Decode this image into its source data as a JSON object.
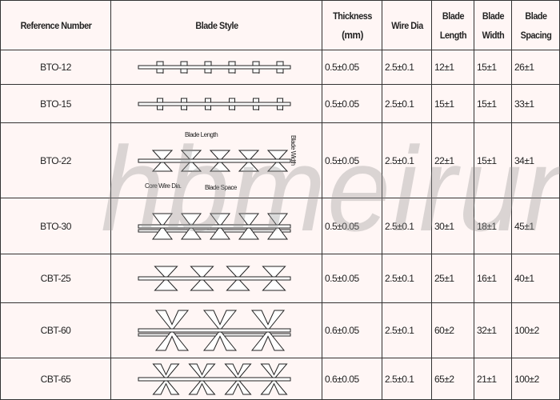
{
  "headers": {
    "ref": "Reference Number",
    "style": "Blade Style",
    "thickness": "Thickness",
    "thickness_unit": "(mm)",
    "wire": "Wire Dia",
    "length1": "Blade",
    "length2": "Length",
    "width1": "Blade",
    "width2": "Width",
    "spacing1": "Blade",
    "spacing2": "Spacing"
  },
  "rows": [
    {
      "ref": "BTO-12",
      "thickness": "0.5±0.05",
      "wire": "2.5±0.1",
      "length": "12±1",
      "width": "15±1",
      "spacing": "26±1"
    },
    {
      "ref": "BTO-15",
      "thickness": "0.5±0.05",
      "wire": "2.5±0.1",
      "length": "15±1",
      "width": "15±1",
      "spacing": "33±1"
    },
    {
      "ref": "BTO-22",
      "thickness": "0.5±0.05",
      "wire": "2.5±0.1",
      "length": "22±1",
      "width": "15±1",
      "spacing": "34±1"
    },
    {
      "ref": "BTO-30",
      "thickness": "0.5±0.05",
      "wire": "2.5±0.1",
      "length": "30±1",
      "width": "18±1",
      "spacing": "45±1"
    },
    {
      "ref": "CBT-25",
      "thickness": "0.5±0.05",
      "wire": "2.5±0.1",
      "length": "25±1",
      "width": "16±1",
      "spacing": "40±1"
    },
    {
      "ref": "CBT-60",
      "thickness": "0.6±0.05",
      "wire": "2.5±0.1",
      "length": "60±2",
      "width": "32±1",
      "spacing": "100±2"
    },
    {
      "ref": "CBT-65",
      "thickness": "0.6±0.05",
      "wire": "2.5±0.1",
      "length": "65±2",
      "width": "21±1",
      "spacing": "100±2"
    }
  ],
  "diagram_labels": {
    "blade_length": "Blade Length",
    "core_wire": "Core Wire Dia.",
    "blade_space": "Blade Space",
    "blade_width": "Blade Width"
  },
  "watermark": "hbmeirun"
}
